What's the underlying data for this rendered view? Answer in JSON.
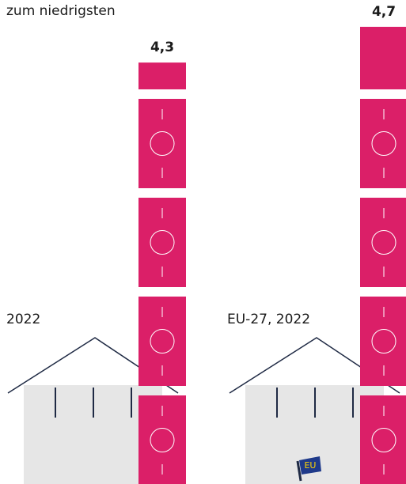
{
  "chart_data": {
    "type": "pictogram",
    "subtitle": "zum niedrigsten",
    "categories": [
      "2022",
      "EU-27, 2022"
    ],
    "values": [
      4.3,
      4.7
    ],
    "value_labels": [
      "4,3",
      "4,7"
    ],
    "color": "#db1f68",
    "flag_label": "EU"
  }
}
